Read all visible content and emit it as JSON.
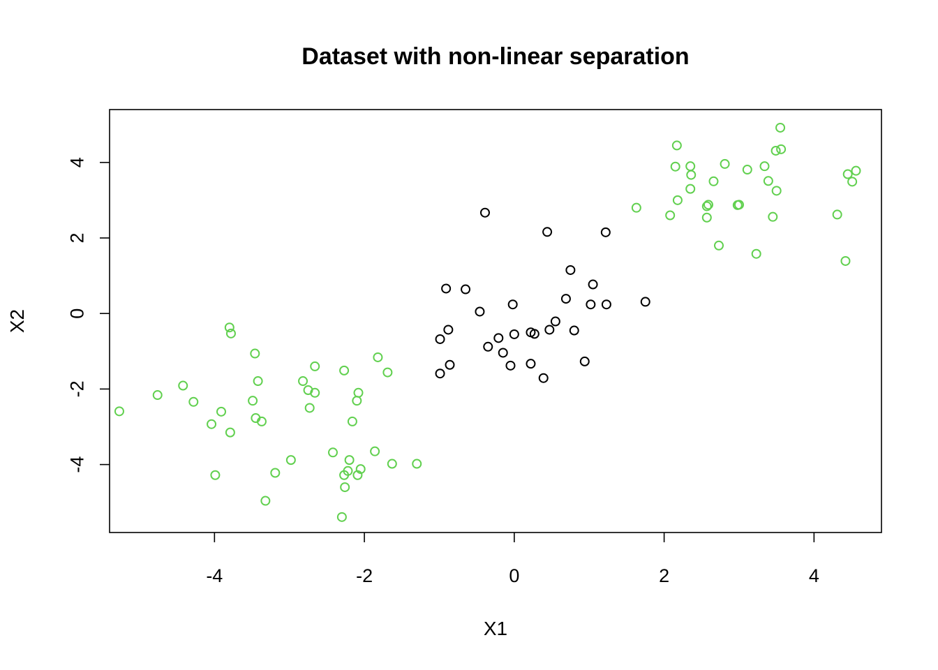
{
  "chart_data": {
    "type": "scatter",
    "title": "Dataset with non-linear separation",
    "xlabel": "X1",
    "ylabel": "X2",
    "xlim": [
      -5.4,
      4.9
    ],
    "ylim": [
      -5.8,
      5.4
    ],
    "xticks": [
      -4,
      -2,
      0,
      2,
      4
    ],
    "yticks": [
      -4,
      -2,
      0,
      2,
      4
    ],
    "grid": false,
    "colors": {
      "class1": "#000000",
      "class2": "#61D04F"
    },
    "series": [
      {
        "color": "#000000",
        "x": [
          -0.39,
          0.44,
          1.22,
          0.75,
          1.05,
          0.69,
          -0.91,
          -0.65,
          -0.46,
          -0.02,
          1.02,
          1.23,
          1.75,
          -0.88,
          -0.99,
          0.55,
          0.47,
          0.22,
          0.27,
          0.0,
          -0.21,
          -0.35,
          -0.15,
          0.8,
          0.94,
          -0.86,
          -0.99,
          -0.05,
          0.22,
          0.39
        ],
        "y": [
          2.67,
          2.16,
          2.15,
          1.15,
          0.77,
          0.39,
          0.66,
          0.64,
          0.05,
          0.24,
          0.24,
          0.24,
          0.31,
          -0.43,
          -0.68,
          -0.21,
          -0.43,
          -0.5,
          -0.54,
          -0.55,
          -0.65,
          -0.88,
          -1.04,
          -0.45,
          -1.27,
          -1.36,
          -1.59,
          -1.38,
          -1.33,
          -1.71
        ]
      },
      {
        "color": "#61D04F",
        "x": [
          3.55,
          3.56,
          2.17,
          3.49,
          2.15,
          2.35,
          2.81,
          3.34,
          3.11,
          2.36,
          4.45,
          4.56,
          3.39,
          4.51,
          2.66,
          2.35,
          3.5,
          2.18,
          3.0,
          2.98,
          2.59,
          1.63,
          2.57,
          2.57,
          3.45,
          4.31,
          2.08,
          2.73,
          3.23,
          4.42,
          -3.8,
          -3.78,
          -3.46,
          -1.82,
          -2.66,
          -2.27,
          -3.42,
          -2.82,
          -1.69,
          -4.42,
          -4.76,
          -2.75,
          -2.66,
          -2.08,
          -4.28,
          -3.49,
          -2.1,
          -2.73,
          -3.91,
          -5.27,
          -3.45,
          -3.37,
          -2.16,
          -4.04,
          -3.79,
          -2.42,
          -1.86,
          -2.2,
          -2.98,
          -1.3,
          -1.63,
          -2.05,
          -2.22,
          -3.19,
          -2.27,
          -2.09,
          -3.99,
          -3.32,
          -2.26,
          -2.3
        ],
        "y": [
          4.92,
          4.35,
          4.45,
          4.31,
          3.89,
          3.9,
          3.96,
          3.9,
          3.81,
          3.67,
          3.69,
          3.78,
          3.51,
          3.49,
          3.5,
          3.3,
          3.25,
          3.0,
          2.88,
          2.87,
          2.88,
          2.8,
          2.84,
          2.54,
          2.56,
          2.62,
          2.6,
          1.8,
          1.58,
          1.39,
          -0.37,
          -0.53,
          -1.06,
          -1.16,
          -1.4,
          -1.51,
          -1.79,
          -1.79,
          -1.56,
          -1.91,
          -2.16,
          -2.03,
          -2.1,
          -2.1,
          -2.34,
          -2.31,
          -2.31,
          -2.5,
          -2.6,
          -2.59,
          -2.77,
          -2.86,
          -2.86,
          -2.93,
          -3.15,
          -3.68,
          -3.65,
          -3.88,
          -3.88,
          -3.98,
          -3.98,
          -4.12,
          -4.17,
          -4.22,
          -4.28,
          -4.28,
          -4.28,
          -4.96,
          -4.6,
          -5.39
        ]
      }
    ]
  }
}
